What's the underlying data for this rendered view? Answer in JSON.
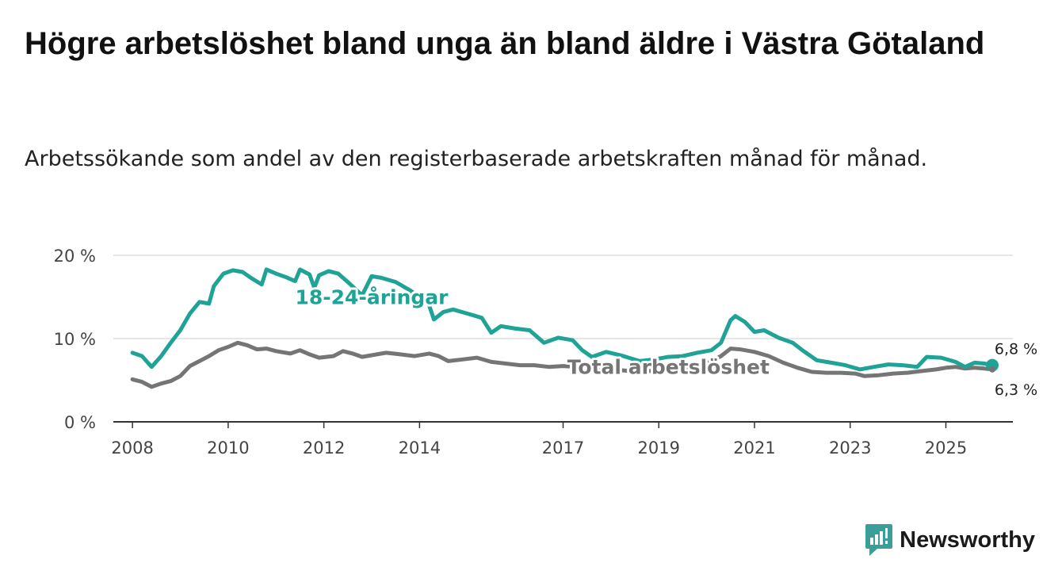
{
  "title": "Högre arbetslöshet bland unga än bland äldre i Västra Götaland",
  "subtitle": "Arbetssökande som andel av den registerbaserade arbetskraften månad för månad.",
  "brand": {
    "name": "Newsworthy",
    "icon": "newsworthy-logo-icon",
    "color": "#3a9e99"
  },
  "colors": {
    "youth": "#1fa396",
    "total": "#757575",
    "grid": "#dddddd",
    "axis": "#333333"
  },
  "chart_data": {
    "type": "line",
    "title": "Högre arbetslöshet bland unga än bland äldre i Västra Götaland",
    "ylim": [
      0,
      20
    ],
    "yticks": [
      0,
      10,
      20
    ],
    "ytick_labels": [
      "0 %",
      "10 %",
      "20 %"
    ],
    "x_range": [
      2007.6,
      2026.4
    ],
    "xticks": [
      2008,
      2010,
      2012,
      2014,
      2017,
      2019,
      2021,
      2023,
      2025
    ],
    "xtick_labels": [
      "2008",
      "2010",
      "2012",
      "2014",
      "2017",
      "2019",
      "2021",
      "2023",
      "2025"
    ],
    "grid": true,
    "series": [
      {
        "name": "18-24-åringar",
        "label": "18-24-åringar",
        "color": "#1fa396",
        "end_label": "6,8 %",
        "points": [
          [
            2008.0,
            8.3
          ],
          [
            2008.2,
            7.9
          ],
          [
            2008.4,
            6.6
          ],
          [
            2008.6,
            7.9
          ],
          [
            2008.8,
            9.5
          ],
          [
            2009.0,
            11.0
          ],
          [
            2009.2,
            13.0
          ],
          [
            2009.4,
            14.4
          ],
          [
            2009.6,
            14.2
          ],
          [
            2009.7,
            16.3
          ],
          [
            2009.9,
            17.8
          ],
          [
            2010.1,
            18.2
          ],
          [
            2010.3,
            18.0
          ],
          [
            2010.5,
            17.2
          ],
          [
            2010.7,
            16.5
          ],
          [
            2010.8,
            18.3
          ],
          [
            2011.0,
            17.8
          ],
          [
            2011.2,
            17.4
          ],
          [
            2011.4,
            16.9
          ],
          [
            2011.5,
            18.3
          ],
          [
            2011.7,
            17.7
          ],
          [
            2011.8,
            16.1
          ],
          [
            2011.9,
            17.6
          ],
          [
            2012.1,
            18.1
          ],
          [
            2012.3,
            17.8
          ],
          [
            2012.5,
            16.8
          ],
          [
            2012.8,
            15.2
          ],
          [
            2013.0,
            17.5
          ],
          [
            2013.2,
            17.3
          ],
          [
            2013.5,
            16.8
          ],
          [
            2013.8,
            15.8
          ],
          [
            2014.0,
            15.0
          ],
          [
            2014.2,
            14.0
          ],
          [
            2014.3,
            12.3
          ],
          [
            2014.5,
            13.2
          ],
          [
            2014.7,
            13.5
          ],
          [
            2015.0,
            13.0
          ],
          [
            2015.3,
            12.5
          ],
          [
            2015.5,
            10.7
          ],
          [
            2015.7,
            11.5
          ],
          [
            2016.0,
            11.2
          ],
          [
            2016.3,
            11.0
          ],
          [
            2016.6,
            9.5
          ],
          [
            2016.9,
            10.1
          ],
          [
            2017.2,
            9.8
          ],
          [
            2017.4,
            8.6
          ],
          [
            2017.6,
            7.8
          ],
          [
            2017.9,
            8.4
          ],
          [
            2018.2,
            8.0
          ],
          [
            2018.6,
            7.3
          ],
          [
            2018.9,
            7.5
          ],
          [
            2019.2,
            7.8
          ],
          [
            2019.5,
            7.9
          ],
          [
            2019.8,
            8.3
          ],
          [
            2020.1,
            8.6
          ],
          [
            2020.3,
            9.5
          ],
          [
            2020.5,
            12.2
          ],
          [
            2020.6,
            12.7
          ],
          [
            2020.8,
            12.0
          ],
          [
            2021.0,
            10.8
          ],
          [
            2021.2,
            11.0
          ],
          [
            2021.5,
            10.1
          ],
          [
            2021.8,
            9.5
          ],
          [
            2022.0,
            8.6
          ],
          [
            2022.3,
            7.4
          ],
          [
            2022.6,
            7.1
          ],
          [
            2022.9,
            6.8
          ],
          [
            2023.2,
            6.3
          ],
          [
            2023.5,
            6.6
          ],
          [
            2023.8,
            6.9
          ],
          [
            2024.1,
            6.8
          ],
          [
            2024.4,
            6.6
          ],
          [
            2024.6,
            7.8
          ],
          [
            2024.9,
            7.7
          ],
          [
            2025.2,
            7.2
          ],
          [
            2025.4,
            6.6
          ],
          [
            2025.6,
            7.1
          ],
          [
            2025.8,
            7.0
          ],
          [
            2025.97,
            6.8
          ]
        ]
      },
      {
        "name": "Total arbetslöshet",
        "label": "Total arbetslöshet",
        "color": "#757575",
        "end_label": "6,3 %",
        "points": [
          [
            2008.0,
            5.1
          ],
          [
            2008.2,
            4.8
          ],
          [
            2008.4,
            4.2
          ],
          [
            2008.6,
            4.6
          ],
          [
            2008.8,
            4.9
          ],
          [
            2009.0,
            5.5
          ],
          [
            2009.2,
            6.7
          ],
          [
            2009.4,
            7.3
          ],
          [
            2009.6,
            7.9
          ],
          [
            2009.8,
            8.6
          ],
          [
            2010.0,
            9.0
          ],
          [
            2010.2,
            9.5
          ],
          [
            2010.4,
            9.2
          ],
          [
            2010.6,
            8.7
          ],
          [
            2010.8,
            8.8
          ],
          [
            2011.0,
            8.5
          ],
          [
            2011.3,
            8.2
          ],
          [
            2011.5,
            8.6
          ],
          [
            2011.7,
            8.1
          ],
          [
            2011.9,
            7.7
          ],
          [
            2012.2,
            7.9
          ],
          [
            2012.4,
            8.5
          ],
          [
            2012.6,
            8.2
          ],
          [
            2012.8,
            7.8
          ],
          [
            2013.0,
            8.0
          ],
          [
            2013.3,
            8.3
          ],
          [
            2013.6,
            8.1
          ],
          [
            2013.9,
            7.9
          ],
          [
            2014.2,
            8.2
          ],
          [
            2014.4,
            7.9
          ],
          [
            2014.6,
            7.3
          ],
          [
            2014.9,
            7.5
          ],
          [
            2015.2,
            7.7
          ],
          [
            2015.5,
            7.2
          ],
          [
            2015.8,
            7.0
          ],
          [
            2016.1,
            6.8
          ],
          [
            2016.4,
            6.8
          ],
          [
            2016.7,
            6.6
          ],
          [
            2017.0,
            6.7
          ],
          [
            2017.3,
            6.6
          ],
          [
            2017.6,
            6.3
          ],
          [
            2018.0,
            6.3
          ],
          [
            2018.4,
            6.1
          ],
          [
            2018.8,
            6.1
          ],
          [
            2019.2,
            6.2
          ],
          [
            2019.6,
            6.4
          ],
          [
            2020.0,
            7.0
          ],
          [
            2020.3,
            7.9
          ],
          [
            2020.5,
            8.8
          ],
          [
            2020.7,
            8.7
          ],
          [
            2021.0,
            8.4
          ],
          [
            2021.3,
            7.9
          ],
          [
            2021.6,
            7.1
          ],
          [
            2021.9,
            6.5
          ],
          [
            2022.2,
            6.0
          ],
          [
            2022.5,
            5.9
          ],
          [
            2022.8,
            5.9
          ],
          [
            2023.1,
            5.8
          ],
          [
            2023.3,
            5.5
          ],
          [
            2023.6,
            5.6
          ],
          [
            2023.9,
            5.8
          ],
          [
            2024.2,
            5.9
          ],
          [
            2024.5,
            6.1
          ],
          [
            2024.8,
            6.3
          ],
          [
            2025.0,
            6.5
          ],
          [
            2025.2,
            6.6
          ],
          [
            2025.4,
            6.4
          ],
          [
            2025.6,
            6.5
          ],
          [
            2025.8,
            6.4
          ],
          [
            2025.97,
            6.3
          ]
        ]
      }
    ]
  }
}
